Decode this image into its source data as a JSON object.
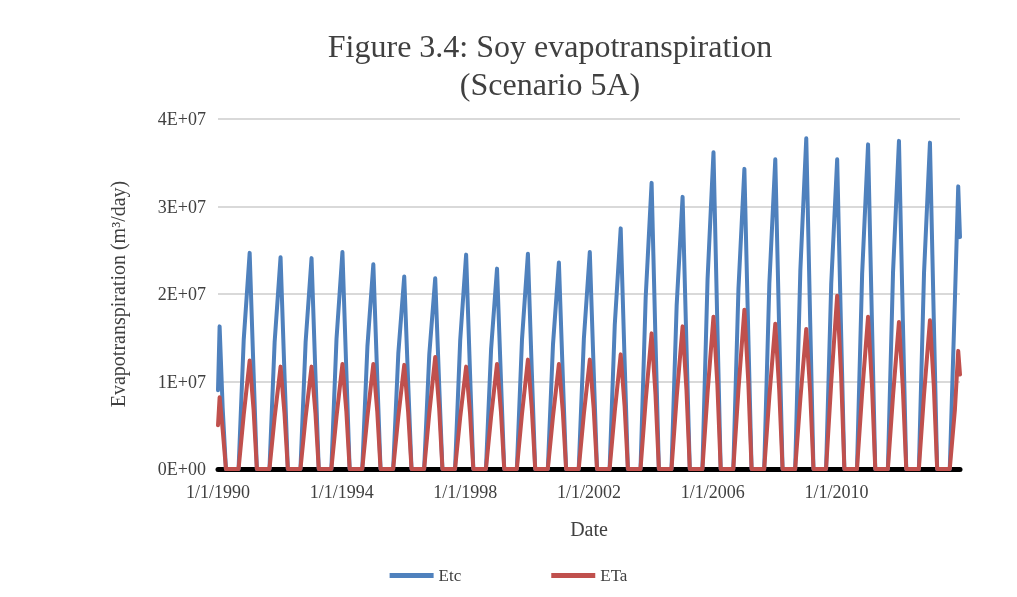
{
  "chart_data": {
    "type": "line",
    "title": "Figure 3.4: Soy evapotranspiration\n(Scenario 5A)",
    "xlabel": "Date",
    "ylabel": "Evapotranspiration (m³/day)",
    "x": [
      "1990-01-01",
      "1990-01-20",
      "1990-02-25",
      "1990-04-05",
      "1990-09-01",
      "1990-11-01",
      "1991-01-10",
      "1991-02-25",
      "1991-04-05",
      "1991-09-01",
      "1991-11-01",
      "1992-01-10",
      "1992-02-25",
      "1992-04-05",
      "1992-09-01",
      "1992-11-01",
      "1993-01-10",
      "1993-02-25",
      "1993-04-05",
      "1993-09-01",
      "1993-11-01",
      "1994-01-10",
      "1994-02-25",
      "1994-04-05",
      "1994-09-01",
      "1994-11-01",
      "1995-01-10",
      "1995-02-25",
      "1995-04-05",
      "1995-09-01",
      "1995-11-01",
      "1996-01-10",
      "1996-02-25",
      "1996-04-05",
      "1996-09-01",
      "1996-11-01",
      "1997-01-10",
      "1997-02-25",
      "1997-04-05",
      "1997-09-01",
      "1997-11-01",
      "1998-01-10",
      "1998-02-25",
      "1998-04-05",
      "1998-09-01",
      "1998-11-01",
      "1999-01-10",
      "1999-02-25",
      "1999-04-05",
      "1999-09-01",
      "1999-11-01",
      "2000-01-10",
      "2000-02-25",
      "2000-04-05",
      "2000-09-01",
      "2000-11-01",
      "2001-01-10",
      "2001-02-25",
      "2001-04-05",
      "2001-09-01",
      "2001-11-01",
      "2002-01-10",
      "2002-02-25",
      "2002-04-05",
      "2002-09-01",
      "2002-11-01",
      "2003-01-10",
      "2003-02-25",
      "2003-04-05",
      "2003-09-01",
      "2003-11-01",
      "2004-01-10",
      "2004-02-25",
      "2004-04-05",
      "2004-09-01",
      "2004-11-01",
      "2005-01-10",
      "2005-02-25",
      "2005-04-05",
      "2005-09-01",
      "2005-11-01",
      "2006-01-10",
      "2006-02-25",
      "2006-04-05",
      "2006-09-01",
      "2006-11-01",
      "2007-01-10",
      "2007-02-25",
      "2007-04-05",
      "2007-09-01",
      "2007-11-01",
      "2008-01-10",
      "2008-02-25",
      "2008-04-05",
      "2008-09-01",
      "2008-11-01",
      "2009-01-10",
      "2009-02-25",
      "2009-04-05",
      "2009-09-01",
      "2009-11-01",
      "2010-01-10",
      "2010-02-25",
      "2010-04-05",
      "2010-09-01",
      "2010-11-01",
      "2011-01-10",
      "2011-02-25",
      "2011-04-05",
      "2011-09-01",
      "2011-11-01",
      "2012-01-10",
      "2012-02-25",
      "2012-04-05",
      "2012-09-01",
      "2012-11-01",
      "2013-01-10",
      "2013-02-25",
      "2013-04-05",
      "2013-09-01",
      "2013-11-01",
      "2013-12-10",
      "2013-12-31"
    ],
    "series": [
      {
        "name": "Etc",
        "color": "#4f81bd",
        "values": [
          9000000,
          16300000,
          7000000,
          0,
          0,
          14800000,
          24700000,
          11100000,
          0,
          0,
          14500000,
          24200000,
          10900000,
          0,
          0,
          14500000,
          24100000,
          10800000,
          0,
          0,
          14900000,
          24800000,
          11200000,
          0,
          0,
          14000000,
          23400000,
          10500000,
          0,
          0,
          13200000,
          22000000,
          9900000,
          0,
          0,
          13100000,
          21800000,
          9800000,
          0,
          0,
          14700000,
          24500000,
          11000000,
          0,
          0,
          13700000,
          22900000,
          10300000,
          0,
          0,
          14800000,
          24600000,
          11100000,
          0,
          0,
          14200000,
          23600000,
          10600000,
          0,
          0,
          14900000,
          24800000,
          11200000,
          0,
          0,
          16500000,
          27500000,
          12400000,
          0,
          0,
          19600000,
          32700000,
          14700000,
          0,
          0,
          18700000,
          31100000,
          14000000,
          0,
          0,
          21700000,
          36200000,
          16300000,
          0,
          0,
          20600000,
          34300000,
          15400000,
          0,
          0,
          21200000,
          35400000,
          15900000,
          0,
          0,
          22700000,
          37800000,
          17000000,
          0,
          0,
          21200000,
          35400000,
          15900000,
          0,
          0,
          22300000,
          37100000,
          16700000,
          0,
          0,
          22500000,
          37500000,
          16900000,
          0,
          0,
          22400000,
          37300000,
          16800000,
          0,
          0,
          19400000,
          32300000,
          26500000
        ]
      },
      {
        "name": "ETa",
        "color": "#c0504d",
        "values": [
          5000000,
          8200000,
          4500000,
          0,
          0,
          6200000,
          12400000,
          6800000,
          0,
          0,
          5900000,
          11700000,
          6400000,
          0,
          0,
          5900000,
          11700000,
          6400000,
          0,
          0,
          6000000,
          12000000,
          6600000,
          0,
          0,
          6000000,
          12000000,
          6600000,
          0,
          0,
          6000000,
          11900000,
          6500000,
          0,
          0,
          6400000,
          12800000,
          7000000,
          0,
          0,
          5900000,
          11700000,
          6400000,
          0,
          0,
          6000000,
          12000000,
          6600000,
          0,
          0,
          6300000,
          12500000,
          6900000,
          0,
          0,
          6000000,
          12000000,
          6600000,
          0,
          0,
          6300000,
          12500000,
          6900000,
          0,
          0,
          6600000,
          13100000,
          7200000,
          0,
          0,
          7800000,
          15500000,
          8500000,
          0,
          0,
          8200000,
          16300000,
          9000000,
          0,
          0,
          8700000,
          17400000,
          9600000,
          0,
          0,
          9100000,
          18200000,
          10000000,
          0,
          0,
          8300000,
          16600000,
          9100000,
          0,
          0,
          8000000,
          16000000,
          8800000,
          0,
          0,
          9900000,
          19800000,
          10900000,
          0,
          0,
          8700000,
          17400000,
          9600000,
          0,
          0,
          8400000,
          16800000,
          9200000,
          0,
          0,
          8500000,
          17000000,
          9400000,
          0,
          0,
          6800000,
          13500000,
          10800000
        ]
      }
    ],
    "xlim": [
      "1990-01-01",
      "2013-12-31"
    ],
    "xticks": [
      {
        "value": "1990-01-01",
        "label": "1/1/1990"
      },
      {
        "value": "1994-01-01",
        "label": "1/1/1994"
      },
      {
        "value": "1998-01-01",
        "label": "1/1/1998"
      },
      {
        "value": "2002-01-01",
        "label": "1/1/2002"
      },
      {
        "value": "2006-01-01",
        "label": "1/1/2006"
      },
      {
        "value": "2010-01-01",
        "label": "1/1/2010"
      }
    ],
    "ylim": [
      0,
      40000000
    ],
    "yticks": [
      {
        "value": 0,
        "label": "0E+00"
      },
      {
        "value": 10000000,
        "label": "1E+07"
      },
      {
        "value": 20000000,
        "label": "2E+07"
      },
      {
        "value": 30000000,
        "label": "3E+07"
      },
      {
        "value": 40000000,
        "label": "4E+07"
      }
    ],
    "grid": "y",
    "legend": "bottom",
    "marker": "none"
  }
}
